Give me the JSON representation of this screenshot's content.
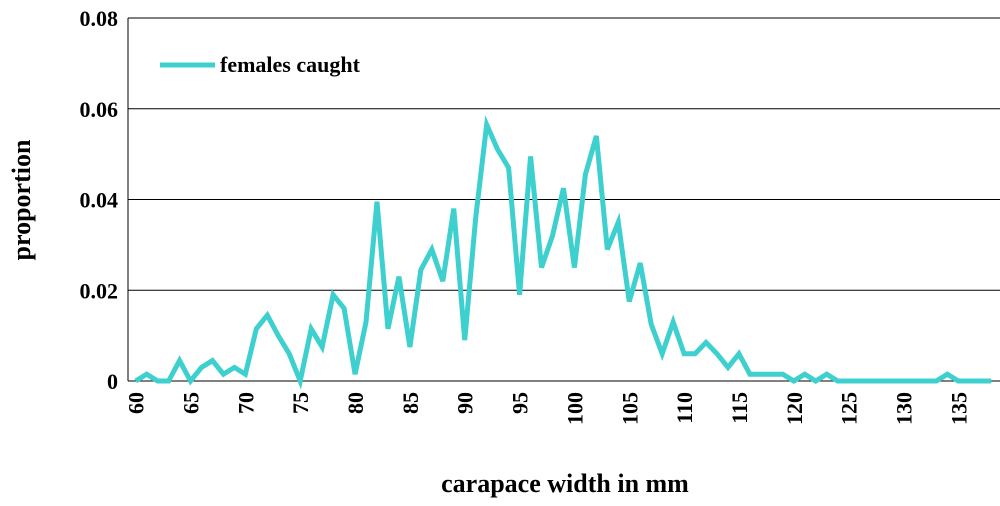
{
  "chart_data": {
    "type": "line",
    "x_label": "carapace width in mm",
    "y_label": "proportion",
    "x": [
      60,
      61,
      62,
      63,
      64,
      65,
      66,
      67,
      68,
      69,
      70,
      71,
      72,
      73,
      74,
      75,
      76,
      77,
      78,
      79,
      80,
      81,
      82,
      83,
      84,
      85,
      86,
      87,
      88,
      89,
      90,
      91,
      92,
      93,
      94,
      95,
      96,
      97,
      98,
      99,
      100,
      101,
      102,
      103,
      104,
      105,
      106,
      107,
      108,
      109,
      110,
      111,
      112,
      113,
      114,
      115,
      116,
      117,
      118,
      119,
      120,
      121,
      122,
      123,
      124,
      125,
      126,
      127,
      128,
      129,
      130,
      131,
      132,
      133,
      134,
      135,
      136,
      137,
      138
    ],
    "series": [
      {
        "name": "females caught",
        "color": "#3ecfcf",
        "values": [
          0,
          0.0015,
          0,
          0,
          0.0045,
          0,
          0.003,
          0.0045,
          0.0015,
          0.003,
          0.0015,
          0.0115,
          0.0145,
          0.01,
          0.006,
          0,
          0.0115,
          0.0075,
          0.019,
          0.016,
          0.0015,
          0.013,
          0.0395,
          0.0115,
          0.023,
          0.0075,
          0.0245,
          0.029,
          0.022,
          0.038,
          0.009,
          0.036,
          0.0565,
          0.051,
          0.047,
          0.019,
          0.0495,
          0.025,
          0.032,
          0.0425,
          0.025,
          0.0455,
          0.054,
          0.029,
          0.035,
          0.0175,
          0.026,
          0.0125,
          0.006,
          0.013,
          0.006,
          0.006,
          0.0085,
          0.006,
          0.003,
          0.006,
          0.0015,
          0.0015,
          0.0015,
          0.0015,
          0,
          0.0015,
          0,
          0.0015,
          0,
          0,
          0,
          0,
          0,
          0,
          0,
          0,
          0,
          0,
          0.0015,
          0,
          0,
          0,
          0
        ]
      }
    ],
    "xlim": [
      59.3,
      138.8
    ],
    "xticks": [
      60,
      65,
      70,
      75,
      80,
      85,
      90,
      95,
      100,
      105,
      110,
      115,
      120,
      125,
      130,
      135
    ],
    "ylim": [
      0,
      0.08
    ],
    "yticks": [
      0,
      0.02,
      0.04,
      0.06,
      0.08
    ],
    "grid": true,
    "legend": "top-left"
  }
}
